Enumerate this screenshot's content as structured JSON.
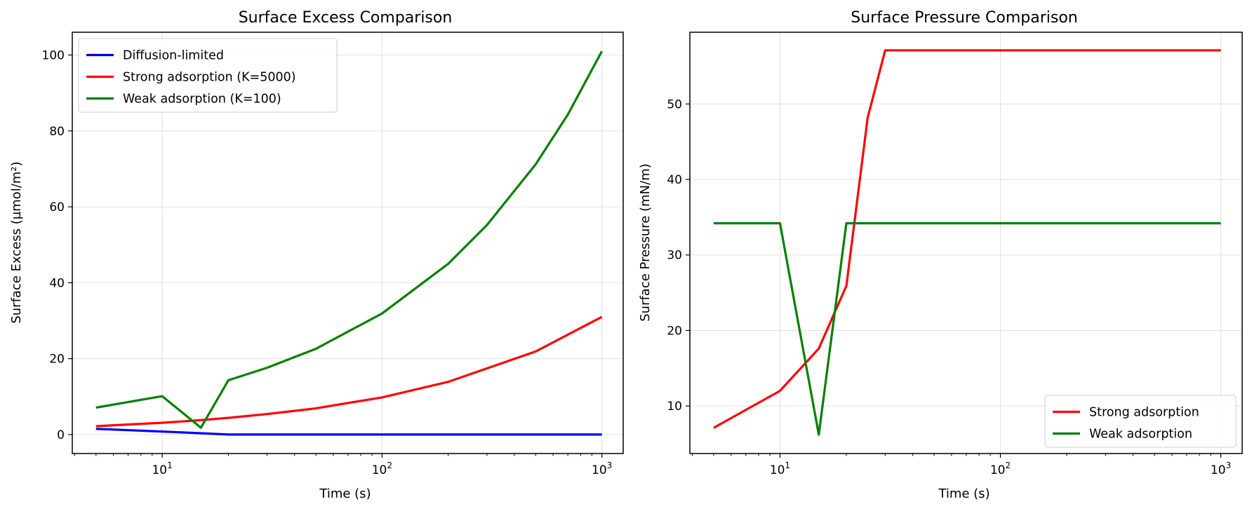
{
  "chart_data": [
    {
      "type": "line",
      "title": "Surface Excess Comparison",
      "xlabel": "Time (s)",
      "ylabel": "Surface Excess (µmol/m²)",
      "xscale": "log",
      "xlim": [
        3.9,
        1250
      ],
      "ylim": [
        -5,
        106
      ],
      "xticks": [
        {
          "base": "10",
          "exp": "1",
          "value": 10
        },
        {
          "base": "10",
          "exp": "2",
          "value": 100
        },
        {
          "base": "10",
          "exp": "3",
          "value": 1000
        }
      ],
      "yticks": [
        0,
        20,
        40,
        60,
        80,
        100
      ],
      "grid": true,
      "legend_position": "upper-left",
      "series": [
        {
          "name": "Diffusion-limited",
          "color": "#0000ff",
          "x": [
            5,
            10,
            20,
            30,
            50,
            100,
            200,
            500,
            1000
          ],
          "y": [
            1.5,
            0.8,
            0,
            0,
            0,
            0,
            0,
            0,
            0
          ]
        },
        {
          "name": "Strong adsorption (K=5000)",
          "color": "#ff0000",
          "x": [
            5,
            10,
            15,
            20,
            30,
            50,
            100,
            200,
            500,
            1000
          ],
          "y": [
            2.2,
            3.1,
            3.8,
            4.4,
            5.4,
            6.9,
            9.8,
            13.9,
            21.9,
            31.0
          ]
        },
        {
          "name": "Weak adsorption (K=100)",
          "color": "#008000",
          "x": [
            5,
            10,
            15,
            20,
            30,
            50,
            100,
            200,
            300,
            500,
            700,
            1000
          ],
          "y": [
            7.1,
            10.1,
            1.8,
            14.3,
            17.6,
            22.6,
            31.9,
            45.0,
            55.2,
            71.2,
            84.3,
            101.0
          ]
        }
      ]
    },
    {
      "type": "line",
      "title": "Surface Pressure Comparison",
      "xlabel": "Time (s)",
      "ylabel": "Surface Pressure (mN/m)",
      "xscale": "log",
      "xlim": [
        3.9,
        1250
      ],
      "ylim": [
        3.7,
        59.5
      ],
      "xticks": [
        {
          "base": "10",
          "exp": "1",
          "value": 10
        },
        {
          "base": "10",
          "exp": "2",
          "value": 100
        },
        {
          "base": "10",
          "exp": "3",
          "value": 1000
        }
      ],
      "yticks": [
        10,
        20,
        30,
        40,
        50
      ],
      "grid": true,
      "legend_position": "lower-right",
      "series": [
        {
          "name": "Strong adsorption",
          "color": "#ff0000",
          "x": [
            5,
            10,
            15,
            20,
            25,
            30,
            1000
          ],
          "y": [
            7.1,
            12.0,
            17.6,
            25.9,
            48.2,
            57.1,
            57.1
          ]
        },
        {
          "name": "Weak adsorption",
          "color": "#008000",
          "x": [
            5,
            10,
            15,
            20,
            1000
          ],
          "y": [
            34.2,
            34.2,
            6.2,
            34.2,
            34.2
          ]
        }
      ]
    }
  ]
}
